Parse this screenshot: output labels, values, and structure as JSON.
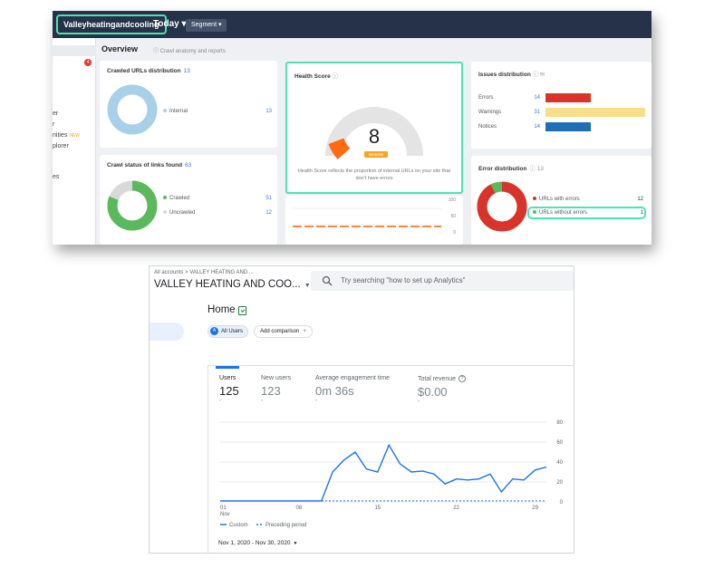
{
  "audit": {
    "project_name": "Valleyheatingandcooling",
    "date_selector": "Today ▾",
    "segment_button": "Segment ▾",
    "sidebar": {
      "badge": "4",
      "items": [
        "er",
        "r",
        "nities",
        "plorer",
        "es"
      ],
      "new_badge": "NEW"
    },
    "overview_title": "Overview",
    "overview_subtitle": "Crawl anatomy and reports",
    "crawled_urls": {
      "title": "Crawled URLs distribution",
      "count": "13",
      "legend": [
        {
          "label": "Internal",
          "value": "13",
          "color": "#a9d0e8"
        }
      ]
    },
    "crawl_status": {
      "title": "Crawl status of links found",
      "count": "63",
      "legend": [
        {
          "label": "Crawled",
          "value": "51",
          "color": "#5cb85c"
        },
        {
          "label": "Uncrawled",
          "value": "12",
          "color": "#d9d9d9"
        }
      ]
    },
    "health": {
      "title": "Health Score",
      "score": "8",
      "badge": "Website",
      "description": "Health Score reflects the proportion of internal URLs on your site that don't have errors",
      "gauge_fraction": 0.08,
      "axis": [
        "100",
        "50",
        "0"
      ]
    },
    "issues": {
      "title": "Issues distribution",
      "rows": [
        {
          "label": "Errors",
          "value": "14",
          "color": "#d9342b",
          "fraction": 0.45
        },
        {
          "label": "Warnings",
          "value": "31",
          "color": "#f8dd8a",
          "fraction": 1.0
        },
        {
          "label": "Notices",
          "value": "14",
          "color": "#1f6fb5",
          "fraction": 0.45
        }
      ]
    },
    "errors": {
      "title": "Error distribution",
      "count": "13",
      "legend": [
        {
          "label": "URLs with errors",
          "value": "12",
          "color": "#d9342b"
        },
        {
          "label": "URLs without errors",
          "value": "1",
          "color": "#5cb85c"
        }
      ]
    }
  },
  "analytics": {
    "breadcrumb": "All accounts > VALLEY HEATING AND ...",
    "property": "VALLEY HEATING AND COO...",
    "search_placeholder": "Try searching \"how to set up Analytics\"",
    "home_title": "Home",
    "segment_chip": "All Users",
    "segment_avatar": "A",
    "add_comparison": "Add comparison",
    "metrics": [
      {
        "label": "Users",
        "value": "125",
        "dash": "-"
      },
      {
        "label": "New users",
        "value": "123",
        "dash": "-"
      },
      {
        "label": "Average engagement time",
        "value": "0m 36s",
        "dash": "-"
      },
      {
        "label": "Total revenue",
        "value": "$0.00",
        "dash": "-"
      }
    ],
    "legend_custom": "Custom",
    "legend_preceding": "Preceding period",
    "date_range": "Nov 1, 2020 - Nov 30, 2020",
    "colors": {
      "line": "#1a73e8",
      "accent": "#1a73e8"
    }
  },
  "chart_data": {
    "type": "line",
    "x_tick_labels": [
      "01\nNov",
      "08",
      "15",
      "22",
      "29"
    ],
    "x_ticks": [
      1,
      8,
      15,
      22,
      29
    ],
    "y_ticks": [
      0,
      20,
      40,
      60,
      80
    ],
    "ylim": [
      0,
      80
    ],
    "xlim": [
      1,
      30
    ],
    "grid": true,
    "legend": "bottom-left",
    "series": [
      {
        "name": "Custom",
        "x": [
          1,
          2,
          3,
          4,
          5,
          6,
          7,
          8,
          9,
          10,
          11,
          12,
          13,
          14,
          15,
          16,
          17,
          18,
          19,
          20,
          21,
          22,
          23,
          24,
          25,
          26,
          27,
          28,
          29,
          30
        ],
        "values": [
          1,
          1,
          1,
          1,
          1,
          1,
          1,
          1,
          1,
          1,
          30,
          42,
          50,
          33,
          30,
          57,
          38,
          30,
          31,
          28,
          18,
          23,
          22,
          23,
          28,
          10,
          23,
          22,
          32,
          35
        ]
      },
      {
        "name": "Preceding period",
        "x": [
          1,
          30
        ],
        "values": [
          1,
          1
        ]
      }
    ]
  }
}
